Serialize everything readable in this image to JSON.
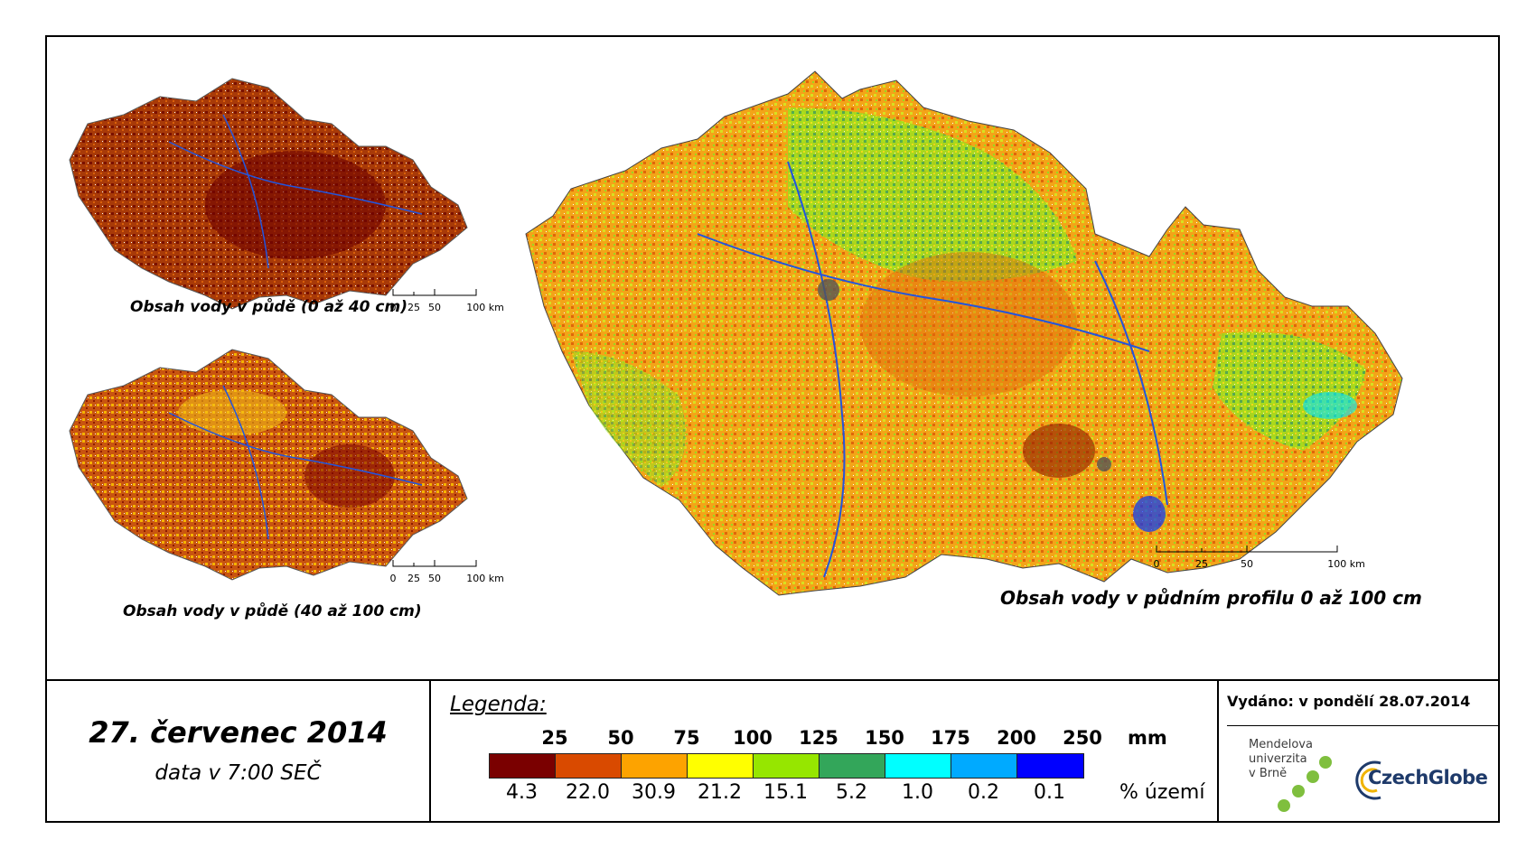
{
  "maps": {
    "small_top_caption": "Obsah vody v půdě (0 až 40 cm)",
    "small_bottom_caption": "Obsah vody v půdě (40 až 100 cm)",
    "main_caption": "Obsah vody v půdním profilu 0 až 100 cm",
    "scalebar_labels": [
      "0",
      "25",
      "50",
      "100 km"
    ]
  },
  "date": {
    "title": "27. červenec 2014",
    "subtitle": "data v 7:00 SEČ"
  },
  "legend": {
    "title": "Legenda:",
    "unit_mm": "mm",
    "unit_pct": "% území",
    "thresholds": [
      "25",
      "50",
      "75",
      "100",
      "125",
      "150",
      "175",
      "200",
      "250"
    ],
    "bins": [
      {
        "color": "#7a0000",
        "pct": "4.3"
      },
      {
        "color": "#d94a00",
        "pct": "22.0"
      },
      {
        "color": "#fda300",
        "pct": "30.9"
      },
      {
        "color": "#ffff00",
        "pct": "21.2"
      },
      {
        "color": "#96e600",
        "pct": "15.1"
      },
      {
        "color": "#33a65a",
        "pct": "5.2"
      },
      {
        "color": "#00ffff",
        "pct": "1.0"
      },
      {
        "color": "#00aaff",
        "pct": "0.2"
      },
      {
        "color": "#0000ff",
        "pct": "0.1"
      }
    ]
  },
  "issued": "Vydáno: v pondělí 28.07.2014",
  "logos": {
    "mendel_lines": [
      "Mendelova",
      "univerzita",
      "v Brně"
    ],
    "czechglobe": "CzechGlobe"
  }
}
